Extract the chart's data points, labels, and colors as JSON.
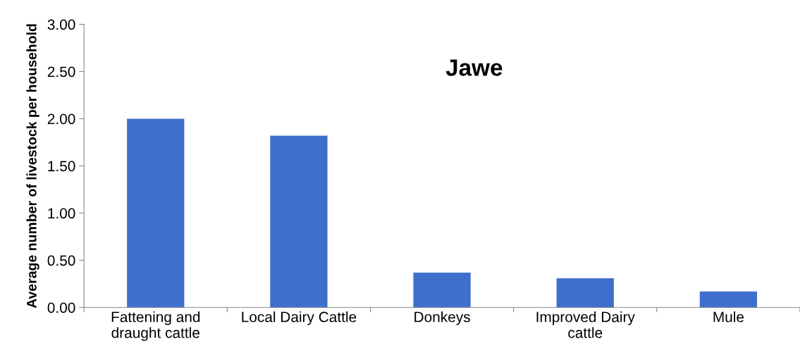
{
  "chart_data": {
    "type": "bar",
    "title": "Jawe",
    "ylabel": "Average number of livestock per household",
    "categories": [
      "Fattening and\ndraught cattle",
      "Local Dairy Cattle",
      "Donkeys",
      "Improved Dairy\ncattle",
      "Mule"
    ],
    "values": [
      2.0,
      1.82,
      0.37,
      0.31,
      0.17
    ],
    "color": "#3f6fcc",
    "ylim": [
      0,
      3
    ],
    "yticks": [
      {
        "value": 0,
        "label": "0.00"
      },
      {
        "value": 0.5,
        "label": "0.50"
      },
      {
        "value": 1,
        "label": "1.00"
      },
      {
        "value": 1.5,
        "label": "1.50"
      },
      {
        "value": 2,
        "label": "2.00"
      },
      {
        "value": 2.5,
        "label": "2.50"
      },
      {
        "value": 3,
        "label": "3.00"
      }
    ],
    "grid": false
  }
}
